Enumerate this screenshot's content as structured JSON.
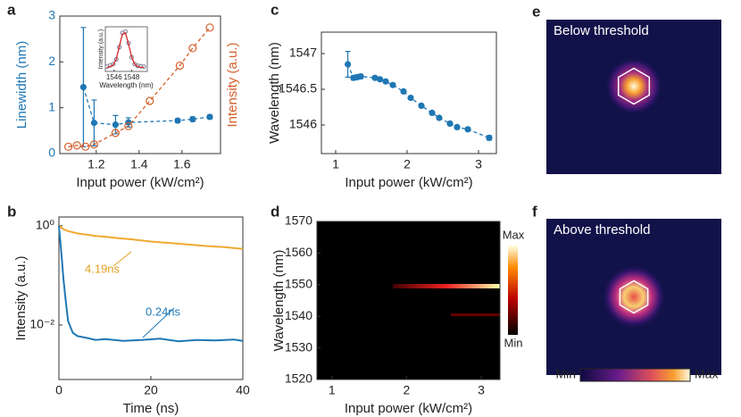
{
  "chart_data": [
    {
      "panel": "a",
      "type": "line",
      "xlabel": "Input power (kW/cm²)",
      "ylabel": "Linewidth (nm)",
      "y2label": "Intensity (a.u.)",
      "ycolor": "#1f77b4",
      "y2color": "#d45f2a",
      "xlim": [
        1.03,
        1.78
      ],
      "xticks": [
        1.2,
        1.4,
        1.6
      ],
      "ylim": [
        0,
        3
      ],
      "yticks": [
        0,
        1,
        2,
        3
      ],
      "y2lim": [
        0,
        3
      ],
      "series": [
        {
          "color": "#1f77b4",
          "axis": "y",
          "marker": "filled",
          "linestyle": "dashed",
          "x": [
            1.14,
            1.19,
            1.29,
            1.35,
            1.58,
            1.65,
            1.73
          ],
          "values": [
            1.45,
            0.67,
            0.63,
            0.68,
            0.72,
            0.75,
            0.8
          ],
          "errors": [
            1.3,
            0.5,
            0.2,
            0.1,
            0.04,
            0.05,
            0.04
          ]
        },
        {
          "color": "#d45f2a",
          "axis": "y2",
          "marker": "open",
          "linestyle": "dashed",
          "x": [
            1.07,
            1.11,
            1.15,
            1.19,
            1.29,
            1.35,
            1.45,
            1.59,
            1.65,
            1.73
          ],
          "values": [
            0.15,
            0.18,
            0.15,
            0.2,
            0.45,
            0.6,
            1.15,
            1.92,
            2.3,
            2.75
          ]
        }
      ]
    },
    {
      "type": "line",
      "xlabel": "Wavelength (nm)",
      "ylabel": "Intensity (a.u.)",
      "xlim": [
        1545,
        1549.8
      ],
      "xticks": [
        1546,
        1548
      ],
      "ylim": [
        0,
        1.1
      ],
      "yticks": [],
      "series": [
        {
          "color": "#8a8aa0",
          "marker": "open",
          "linestyle": "none",
          "x": [
            1545.2,
            1545.55,
            1545.9,
            1546.25,
            1546.6,
            1546.95,
            1547.3,
            1547.65,
            1548.0,
            1548.35,
            1548.7,
            1549.05,
            1549.4
          ],
          "values": [
            0.12,
            0.15,
            0.18,
            0.3,
            0.6,
            0.95,
            0.98,
            0.7,
            0.35,
            0.18,
            0.14,
            0.13,
            0.12
          ]
        },
        {
          "color": "#d62728",
          "marker": "none",
          "linestyle": "solid",
          "x": [
            1545.2,
            1545.55,
            1545.9,
            1546.25,
            1546.6,
            1546.95,
            1547.3,
            1547.65,
            1548.0,
            1548.35,
            1548.7,
            1549.05,
            1549.4
          ],
          "values": [
            0.1,
            0.12,
            0.16,
            0.3,
            0.62,
            0.92,
            0.95,
            0.68,
            0.36,
            0.18,
            0.12,
            0.1,
            0.1
          ]
        }
      ]
    },
    {
      "panel": "b",
      "type": "line",
      "log_y": true,
      "xlabel": "Time (ns)",
      "ylabel": "Intensity (a.u.)",
      "xlim": [
        0,
        40
      ],
      "xticks": [
        0,
        20,
        40
      ],
      "ylim": [
        0.0008,
        1.5
      ],
      "yticks": [
        {
          "value": 1,
          "label": "10⁰"
        },
        {
          "value": 0.01,
          "label": "10⁻²"
        }
      ],
      "annotations": [
        {
          "text": "4.19ns",
          "color": "#e0a020"
        },
        {
          "text": "0.24ns",
          "color": "#1f77b4"
        }
      ],
      "series": [
        {
          "color": "#f0a830",
          "marker": "none",
          "linestyle": "solid",
          "x": [
            0,
            1,
            2,
            4,
            6,
            8,
            10,
            13,
            16,
            20,
            24,
            28,
            32,
            36,
            40
          ],
          "values": [
            1,
            0.85,
            0.78,
            0.7,
            0.66,
            0.62,
            0.6,
            0.56,
            0.53,
            0.48,
            0.45,
            0.42,
            0.39,
            0.37,
            0.34
          ]
        },
        {
          "color": "#1f77b4",
          "marker": "none",
          "linestyle": "solid",
          "x": [
            0,
            0.5,
            1,
            1.5,
            2,
            3,
            4,
            6,
            8,
            10,
            14,
            18,
            22,
            26,
            30,
            34,
            38,
            40
          ],
          "values": [
            1,
            0.3,
            0.08,
            0.03,
            0.012,
            0.007,
            0.006,
            0.0055,
            0.005,
            0.0052,
            0.0048,
            0.005,
            0.0053,
            0.0047,
            0.005,
            0.0049,
            0.0051,
            0.0048
          ]
        }
      ]
    },
    {
      "panel": "c",
      "type": "scatter",
      "xlabel": "Input power (kW/cm²)",
      "ylabel": "Wavelength (nm)",
      "xlim": [
        0.8,
        3.25
      ],
      "xticks": [
        1,
        2,
        3
      ],
      "ylim": [
        1545.6,
        1547.3
      ],
      "yticks": [
        1546,
        1546.5,
        1547
      ],
      "series": [
        {
          "color": "#1f77b4",
          "marker": "filled",
          "linestyle": "dashed",
          "x": [
            1.17,
            1.25,
            1.3,
            1.35,
            1.55,
            1.62,
            1.7,
            1.8,
            1.95,
            2.05,
            2.2,
            2.35,
            2.45,
            2.6,
            2.7,
            2.85,
            3.15
          ],
          "values": [
            1546.85,
            1546.66,
            1546.67,
            1546.68,
            1546.66,
            1546.64,
            1546.61,
            1546.56,
            1546.47,
            1546.38,
            1546.27,
            1546.17,
            1546.1,
            1546.02,
            1545.97,
            1545.94,
            1545.82
          ],
          "errors": [
            0.18,
            0.03,
            0.03,
            0.03,
            0.02,
            0.02,
            0.02,
            0.02,
            0.02,
            0.02,
            0.02,
            0.02,
            0.02,
            0.02,
            0.02,
            0.02,
            0.03
          ]
        }
      ]
    },
    {
      "panel": "d",
      "type": "heatmap",
      "xlabel": "Input power (kW/cm²)",
      "ylabel": "Wavelength (nm)",
      "xlim": [
        0.8,
        3.25
      ],
      "xticks": [
        1,
        2,
        3
      ],
      "ylim": [
        1520,
        1570
      ],
      "yticks": [
        1520,
        1530,
        1540,
        1550,
        1560,
        1570
      ],
      "colorbar_labels": [
        "Max",
        "Min"
      ]
    },
    {
      "panel": "e",
      "type": "image",
      "title": "Below threshold"
    },
    {
      "panel": "f",
      "type": "image",
      "title": "Above threshold",
      "colorbar_labels": [
        "Min",
        "Max"
      ]
    }
  ]
}
